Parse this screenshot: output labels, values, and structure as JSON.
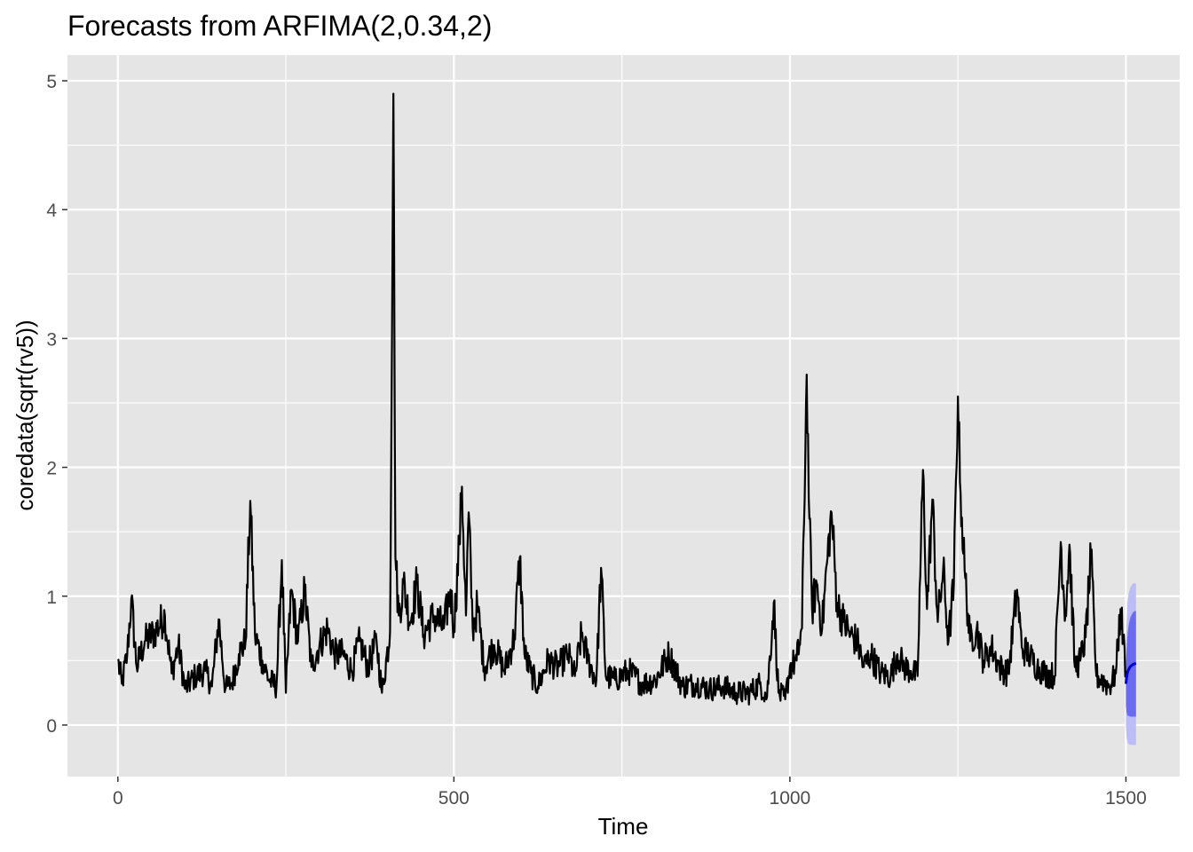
{
  "chart_data": {
    "type": "line",
    "title": "Forecasts from ARFIMA(2,0.34,2)",
    "xlabel": "Time",
    "ylabel": "coredata(sqrt(rv5))",
    "xlim": [
      -75,
      1580
    ],
    "ylim": [
      -0.4,
      5.2
    ],
    "x_ticks": [
      0,
      500,
      1000,
      1500
    ],
    "x_tick_labels": [
      "0",
      "500",
      "1000",
      "1500"
    ],
    "y_ticks": [
      0,
      1,
      2,
      3,
      4,
      5
    ],
    "y_tick_labels": [
      "0",
      "1",
      "2",
      "3",
      "4",
      "5"
    ],
    "grid": true,
    "legend": "none",
    "colors": {
      "panel": "#e5e5e5",
      "grid": "#ffffff",
      "series": "#000000",
      "forecast": "#0000cc",
      "band80": "#6b6bf0",
      "band95": "#bcbcf7"
    },
    "series_keypoints": [
      [
        0,
        0.5
      ],
      [
        6,
        0.32
      ],
      [
        14,
        0.55
      ],
      [
        20,
        0.98
      ],
      [
        28,
        0.45
      ],
      [
        40,
        0.65
      ],
      [
        55,
        0.72
      ],
      [
        70,
        0.85
      ],
      [
        80,
        0.4
      ],
      [
        90,
        0.62
      ],
      [
        100,
        0.28
      ],
      [
        115,
        0.38
      ],
      [
        130,
        0.42
      ],
      [
        140,
        0.3
      ],
      [
        150,
        0.82
      ],
      [
        160,
        0.28
      ],
      [
        170,
        0.33
      ],
      [
        180,
        0.55
      ],
      [
        190,
        0.65
      ],
      [
        197,
        1.74
      ],
      [
        204,
        0.7
      ],
      [
        215,
        0.5
      ],
      [
        225,
        0.35
      ],
      [
        236,
        0.3
      ],
      [
        244,
        1.28
      ],
      [
        250,
        0.25
      ],
      [
        258,
        1.05
      ],
      [
        268,
        0.65
      ],
      [
        278,
        1.05
      ],
      [
        288,
        0.45
      ],
      [
        300,
        0.62
      ],
      [
        312,
        0.75
      ],
      [
        322,
        0.55
      ],
      [
        335,
        0.55
      ],
      [
        348,
        0.42
      ],
      [
        360,
        0.65
      ],
      [
        372,
        0.45
      ],
      [
        385,
        0.65
      ],
      [
        393,
        0.25
      ],
      [
        405,
        0.72
      ],
      [
        410,
        4.9
      ],
      [
        413,
        1.3
      ],
      [
        418,
        0.85
      ],
      [
        425,
        1.1
      ],
      [
        435,
        0.8
      ],
      [
        445,
        1.1
      ],
      [
        455,
        0.7
      ],
      [
        470,
        0.85
      ],
      [
        485,
        0.75
      ],
      [
        495,
        1.05
      ],
      [
        500,
        0.75
      ],
      [
        508,
        1.4
      ],
      [
        512,
        1.85
      ],
      [
        518,
        0.85
      ],
      [
        522,
        1.65
      ],
      [
        528,
        0.75
      ],
      [
        535,
        0.92
      ],
      [
        545,
        0.45
      ],
      [
        560,
        0.62
      ],
      [
        575,
        0.42
      ],
      [
        590,
        0.68
      ],
      [
        598,
        1.3
      ],
      [
        605,
        0.55
      ],
      [
        615,
        0.4
      ],
      [
        625,
        0.3
      ],
      [
        640,
        0.5
      ],
      [
        655,
        0.45
      ],
      [
        670,
        0.55
      ],
      [
        680,
        0.38
      ],
      [
        690,
        0.7
      ],
      [
        700,
        0.5
      ],
      [
        712,
        0.35
      ],
      [
        719,
        1.22
      ],
      [
        726,
        0.38
      ],
      [
        740,
        0.35
      ],
      [
        760,
        0.42
      ],
      [
        780,
        0.32
      ],
      [
        800,
        0.35
      ],
      [
        820,
        0.55
      ],
      [
        840,
        0.3
      ],
      [
        860,
        0.32
      ],
      [
        880,
        0.28
      ],
      [
        900,
        0.3
      ],
      [
        920,
        0.25
      ],
      [
        940,
        0.25
      ],
      [
        955,
        0.32
      ],
      [
        966,
        0.22
      ],
      [
        976,
        0.95
      ],
      [
        983,
        0.25
      ],
      [
        993,
        0.2
      ],
      [
        1000,
        0.45
      ],
      [
        1010,
        0.5
      ],
      [
        1018,
        0.75
      ],
      [
        1025,
        2.72
      ],
      [
        1029,
        1.6
      ],
      [
        1033,
        0.9
      ],
      [
        1040,
        1.1
      ],
      [
        1048,
        0.75
      ],
      [
        1055,
        1.25
      ],
      [
        1062,
        1.65
      ],
      [
        1070,
        0.95
      ],
      [
        1080,
        0.8
      ],
      [
        1090,
        0.7
      ],
      [
        1100,
        0.65
      ],
      [
        1110,
        0.45
      ],
      [
        1120,
        0.55
      ],
      [
        1135,
        0.4
      ],
      [
        1150,
        0.38
      ],
      [
        1160,
        0.55
      ],
      [
        1170,
        0.45
      ],
      [
        1180,
        0.42
      ],
      [
        1190,
        0.38
      ],
      [
        1198,
        1.98
      ],
      [
        1204,
        0.9
      ],
      [
        1212,
        1.75
      ],
      [
        1220,
        0.8
      ],
      [
        1228,
        1.2
      ],
      [
        1236,
        0.65
      ],
      [
        1244,
        1.1
      ],
      [
        1250,
        2.55
      ],
      [
        1254,
        1.8
      ],
      [
        1260,
        1.2
      ],
      [
        1268,
        0.65
      ],
      [
        1278,
        0.75
      ],
      [
        1288,
        0.5
      ],
      [
        1300,
        0.6
      ],
      [
        1312,
        0.45
      ],
      [
        1325,
        0.4
      ],
      [
        1338,
        1.05
      ],
      [
        1345,
        0.6
      ],
      [
        1355,
        0.55
      ],
      [
        1368,
        0.45
      ],
      [
        1380,
        0.4
      ],
      [
        1394,
        0.38
      ],
      [
        1403,
        1.42
      ],
      [
        1410,
        0.85
      ],
      [
        1416,
        1.4
      ],
      [
        1424,
        0.45
      ],
      [
        1432,
        0.5
      ],
      [
        1440,
        0.68
      ],
      [
        1448,
        1.3
      ],
      [
        1456,
        0.38
      ],
      [
        1465,
        0.35
      ],
      [
        1475,
        0.3
      ],
      [
        1485,
        0.4
      ],
      [
        1492,
        0.9
      ],
      [
        1500,
        0.42
      ]
    ],
    "forecast": {
      "x": [
        1500,
        1501,
        1502,
        1503,
        1504,
        1505,
        1506,
        1507,
        1508,
        1509,
        1510,
        1511,
        1512,
        1513,
        1514,
        1515
      ],
      "mean": [
        0.32,
        0.37,
        0.4,
        0.42,
        0.43,
        0.44,
        0.45,
        0.455,
        0.46,
        0.465,
        0.47,
        0.47,
        0.475,
        0.475,
        0.478,
        0.48
      ],
      "lo80": [
        0.15,
        0.1,
        0.08,
        0.07,
        0.07,
        0.07,
        0.065,
        0.065,
        0.065,
        0.065,
        0.065,
        0.065,
        0.065,
        0.065,
        0.065,
        0.065
      ],
      "hi80": [
        0.45,
        0.6,
        0.68,
        0.73,
        0.77,
        0.8,
        0.82,
        0.84,
        0.85,
        0.86,
        0.87,
        0.875,
        0.88,
        0.885,
        0.885,
        0.885
      ],
      "lo95": [
        0.0,
        -0.1,
        -0.13,
        -0.14,
        -0.15,
        -0.15,
        -0.15,
        -0.155,
        -0.155,
        -0.155,
        -0.155,
        -0.155,
        -0.155,
        -0.155,
        -0.155,
        -0.155
      ],
      "hi95": [
        0.55,
        0.8,
        0.92,
        0.98,
        1.02,
        1.04,
        1.06,
        1.07,
        1.08,
        1.09,
        1.095,
        1.1,
        1.1,
        1.1,
        1.1,
        1.1
      ]
    }
  }
}
